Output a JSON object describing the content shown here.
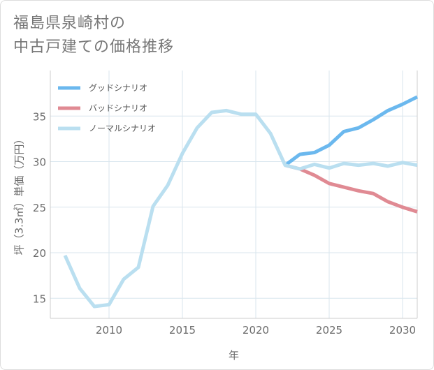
{
  "title_lines": [
    "福島県泉崎村の",
    "中古戸建ての価格推移"
  ],
  "colors": {
    "good": "#6bb8ee",
    "bad": "#e08a93",
    "normal": "#badff0",
    "grid": "#d9e6ee",
    "axis": "#cccccc"
  },
  "chart_data": {
    "type": "line",
    "title": "福島県泉崎村の中古戸建ての価格推移",
    "xlabel": "年",
    "ylabel": "坪（3.3㎡）単価（万円）",
    "xlim": [
      2006,
      2031
    ],
    "ylim": [
      12.8,
      40
    ],
    "xticks": [
      2010,
      2015,
      2020,
      2025,
      2030
    ],
    "yticks": [
      15,
      20,
      25,
      30,
      35
    ],
    "legend_position": "top-left",
    "series": [
      {
        "key": "good",
        "name": "グッドシナリオ",
        "x": [
          2022,
          2023,
          2024,
          2025,
          2026,
          2027,
          2028,
          2029,
          2030,
          2031
        ],
        "y": [
          29.6,
          30.8,
          31.0,
          31.8,
          33.3,
          33.7,
          34.6,
          35.6,
          36.3,
          37.1
        ]
      },
      {
        "key": "bad",
        "name": "バッドシナリオ",
        "x": [
          2022,
          2023,
          2024,
          2025,
          2026,
          2027,
          2028,
          2029,
          2030,
          2031
        ],
        "y": [
          29.6,
          29.2,
          28.5,
          27.6,
          27.2,
          26.8,
          26.5,
          25.6,
          25.0,
          24.5
        ]
      },
      {
        "key": "normal",
        "name": "ノーマルシナリオ",
        "x": [
          2007,
          2008,
          2009,
          2010,
          2011,
          2012,
          2013,
          2014,
          2015,
          2016,
          2017,
          2018,
          2019,
          2020,
          2021,
          2022,
          2023,
          2024,
          2025,
          2026,
          2027,
          2028,
          2029,
          2030,
          2031
        ],
        "y": [
          19.7,
          16.1,
          14.1,
          14.3,
          17.1,
          18.4,
          25.1,
          27.4,
          30.9,
          33.7,
          35.4,
          35.6,
          35.2,
          35.2,
          33.1,
          29.6,
          29.2,
          29.7,
          29.3,
          29.8,
          29.6,
          29.8,
          29.5,
          29.9,
          29.6
        ]
      }
    ]
  }
}
